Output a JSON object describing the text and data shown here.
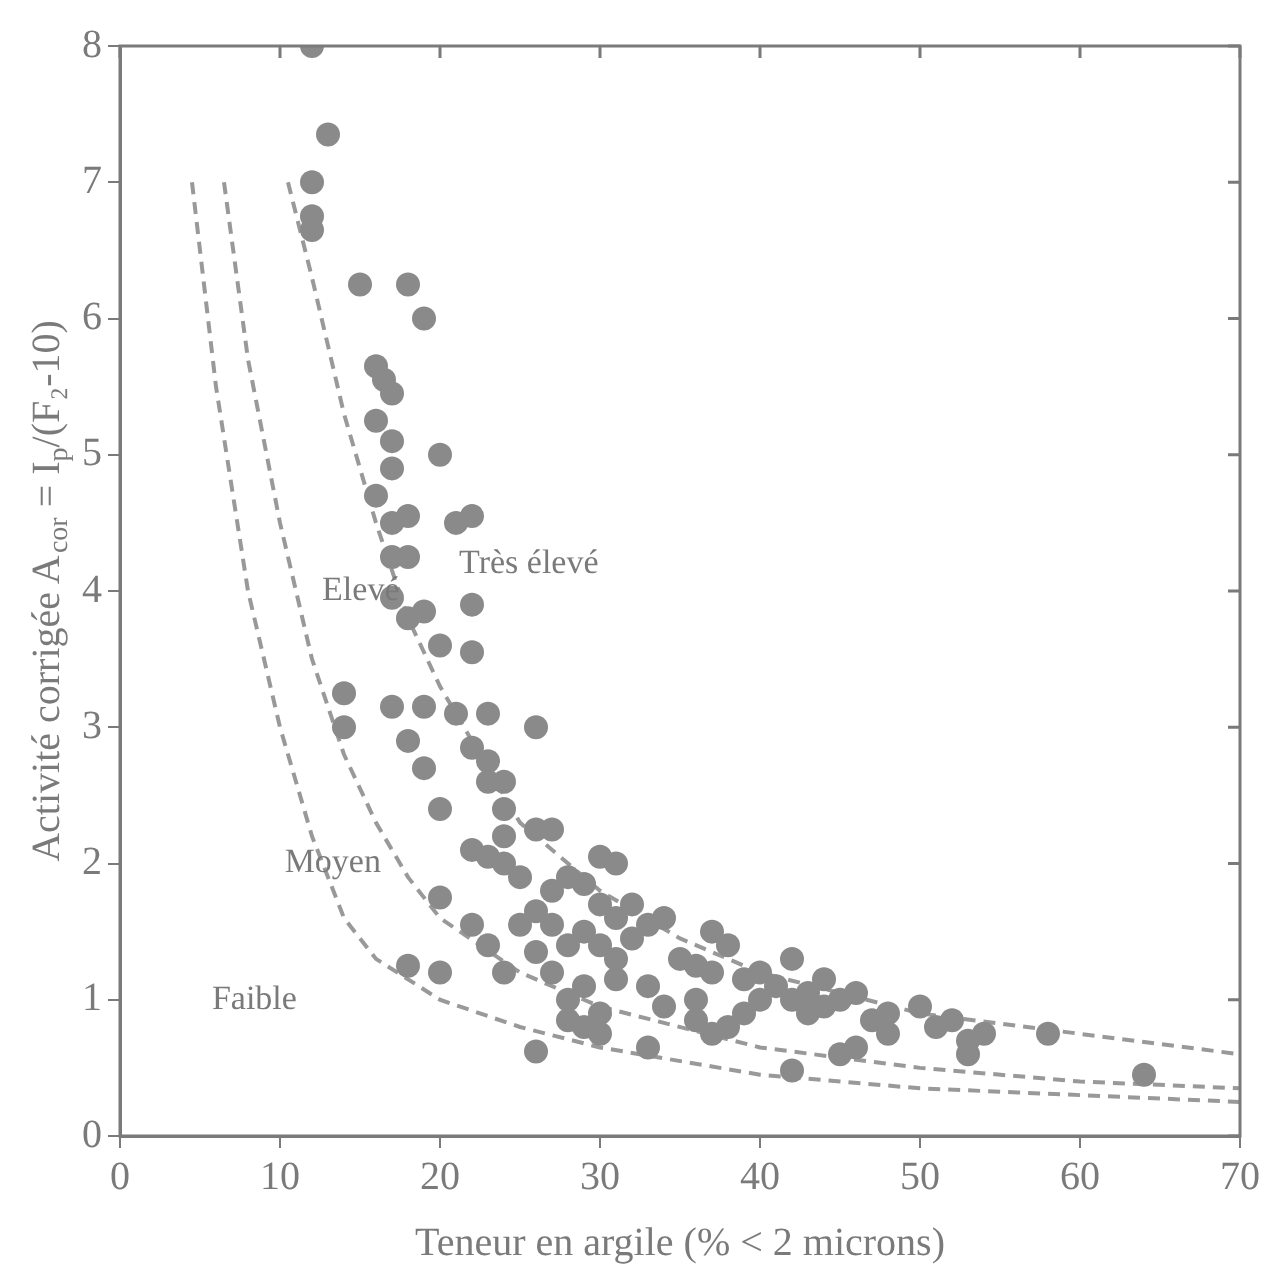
{
  "chart_data": {
    "type": "scatter",
    "xlabel": "Teneur en argile (% < 2 microns)",
    "ylabel": "Activité corrigée A$_{cor}$ = I$_{p}$/(F₂-10)",
    "xlim": [
      0,
      70
    ],
    "ylim": [
      0,
      8
    ],
    "xticks": [
      0,
      10,
      20,
      30,
      40,
      50,
      60,
      70
    ],
    "yticks": [
      0,
      1,
      2,
      3,
      4,
      5,
      6,
      7,
      8
    ],
    "grid": false,
    "legend": false,
    "marker": "circle",
    "series": [
      {
        "color": "#8a8a8a",
        "x": [
          12,
          13,
          12,
          12,
          12,
          15,
          18,
          19,
          16,
          16.5,
          17,
          16,
          17,
          17,
          16,
          17,
          18,
          20,
          21,
          22,
          17,
          18,
          17,
          18,
          19,
          20,
          22,
          22,
          14,
          14,
          17,
          19,
          18,
          21,
          23,
          19,
          20,
          22,
          23,
          23,
          24,
          24,
          26,
          24,
          20,
          22,
          23,
          24,
          26,
          27,
          25,
          26,
          27,
          28,
          29,
          30,
          31,
          30,
          31,
          32,
          33,
          29,
          30,
          31,
          32,
          34,
          35,
          36,
          37,
          38,
          37,
          39,
          40,
          41,
          42,
          43,
          44,
          45,
          46,
          44,
          47,
          48,
          50,
          51,
          52,
          53,
          54,
          58,
          64,
          22,
          23,
          24,
          26,
          27,
          28,
          29,
          30,
          18,
          20,
          26,
          28,
          29,
          30,
          33,
          36,
          37,
          38,
          42,
          45,
          46,
          48,
          36,
          39,
          40,
          42,
          43,
          53,
          31,
          33,
          34,
          25,
          27,
          28
        ],
        "values": [
          8.0,
          7.35,
          7.0,
          6.75,
          6.65,
          6.25,
          6.25,
          6.0,
          5.65,
          5.55,
          5.45,
          5.25,
          5.1,
          4.9,
          4.7,
          4.5,
          4.55,
          5.0,
          4.5,
          4.55,
          4.25,
          4.25,
          3.95,
          3.8,
          3.85,
          3.6,
          3.9,
          3.55,
          3.25,
          3.0,
          3.15,
          3.15,
          2.9,
          3.1,
          3.1,
          2.7,
          2.4,
          2.85,
          2.75,
          2.6,
          2.6,
          2.4,
          3.0,
          2.2,
          1.75,
          2.1,
          2.05,
          2.0,
          2.25,
          2.25,
          1.9,
          1.65,
          1.8,
          1.9,
          1.85,
          2.05,
          2.0,
          1.7,
          1.6,
          1.7,
          1.55,
          1.5,
          1.4,
          1.3,
          1.45,
          1.6,
          1.3,
          1.25,
          1.5,
          1.4,
          1.2,
          1.15,
          1.2,
          1.1,
          1.3,
          1.05,
          1.15,
          1.0,
          1.05,
          0.95,
          0.85,
          0.9,
          0.95,
          0.8,
          0.85,
          0.7,
          0.75,
          0.75,
          0.45,
          1.55,
          1.4,
          1.2,
          1.35,
          1.2,
          1.0,
          1.1,
          0.9,
          1.25,
          1.2,
          0.62,
          0.85,
          0.8,
          0.75,
          0.65,
          0.85,
          0.75,
          0.8,
          0.48,
          0.6,
          0.65,
          0.75,
          1.0,
          0.9,
          1.0,
          1.0,
          0.9,
          0.6,
          1.15,
          1.1,
          0.95,
          1.55,
          1.55,
          1.4
        ]
      },
      {
        "type": "line",
        "color": "#999999",
        "marker": "none",
        "line_style": "dashed",
        "x": [
          4.5,
          6,
          8,
          10,
          12,
          14,
          16,
          20,
          25,
          30,
          40,
          50,
          60,
          70
        ],
        "values": [
          7.0,
          5.5,
          4.0,
          3.0,
          2.2,
          1.6,
          1.3,
          1.0,
          0.8,
          0.65,
          0.45,
          0.35,
          0.3,
          0.25
        ]
      },
      {
        "type": "line",
        "color": "#999999",
        "marker": "none",
        "line_style": "dashed",
        "x": [
          6.5,
          8,
          10,
          12,
          14,
          16,
          18,
          20,
          25,
          30,
          40,
          50,
          60,
          70
        ],
        "values": [
          7.0,
          5.7,
          4.5,
          3.5,
          2.8,
          2.3,
          1.9,
          1.6,
          1.2,
          0.95,
          0.65,
          0.5,
          0.4,
          0.35
        ]
      },
      {
        "type": "line",
        "color": "#999999",
        "marker": "none",
        "line_style": "dashed",
        "x": [
          10.5,
          12,
          14,
          16,
          18,
          20,
          22,
          25,
          30,
          35,
          40,
          50,
          60,
          70
        ],
        "values": [
          7.0,
          6.3,
          5.3,
          4.5,
          3.8,
          3.3,
          2.9,
          2.3,
          1.8,
          1.45,
          1.2,
          0.9,
          0.75,
          0.6
        ]
      }
    ],
    "annotations": [
      "Faible",
      "Moyen",
      "Elevé",
      "Très élevé"
    ]
  }
}
